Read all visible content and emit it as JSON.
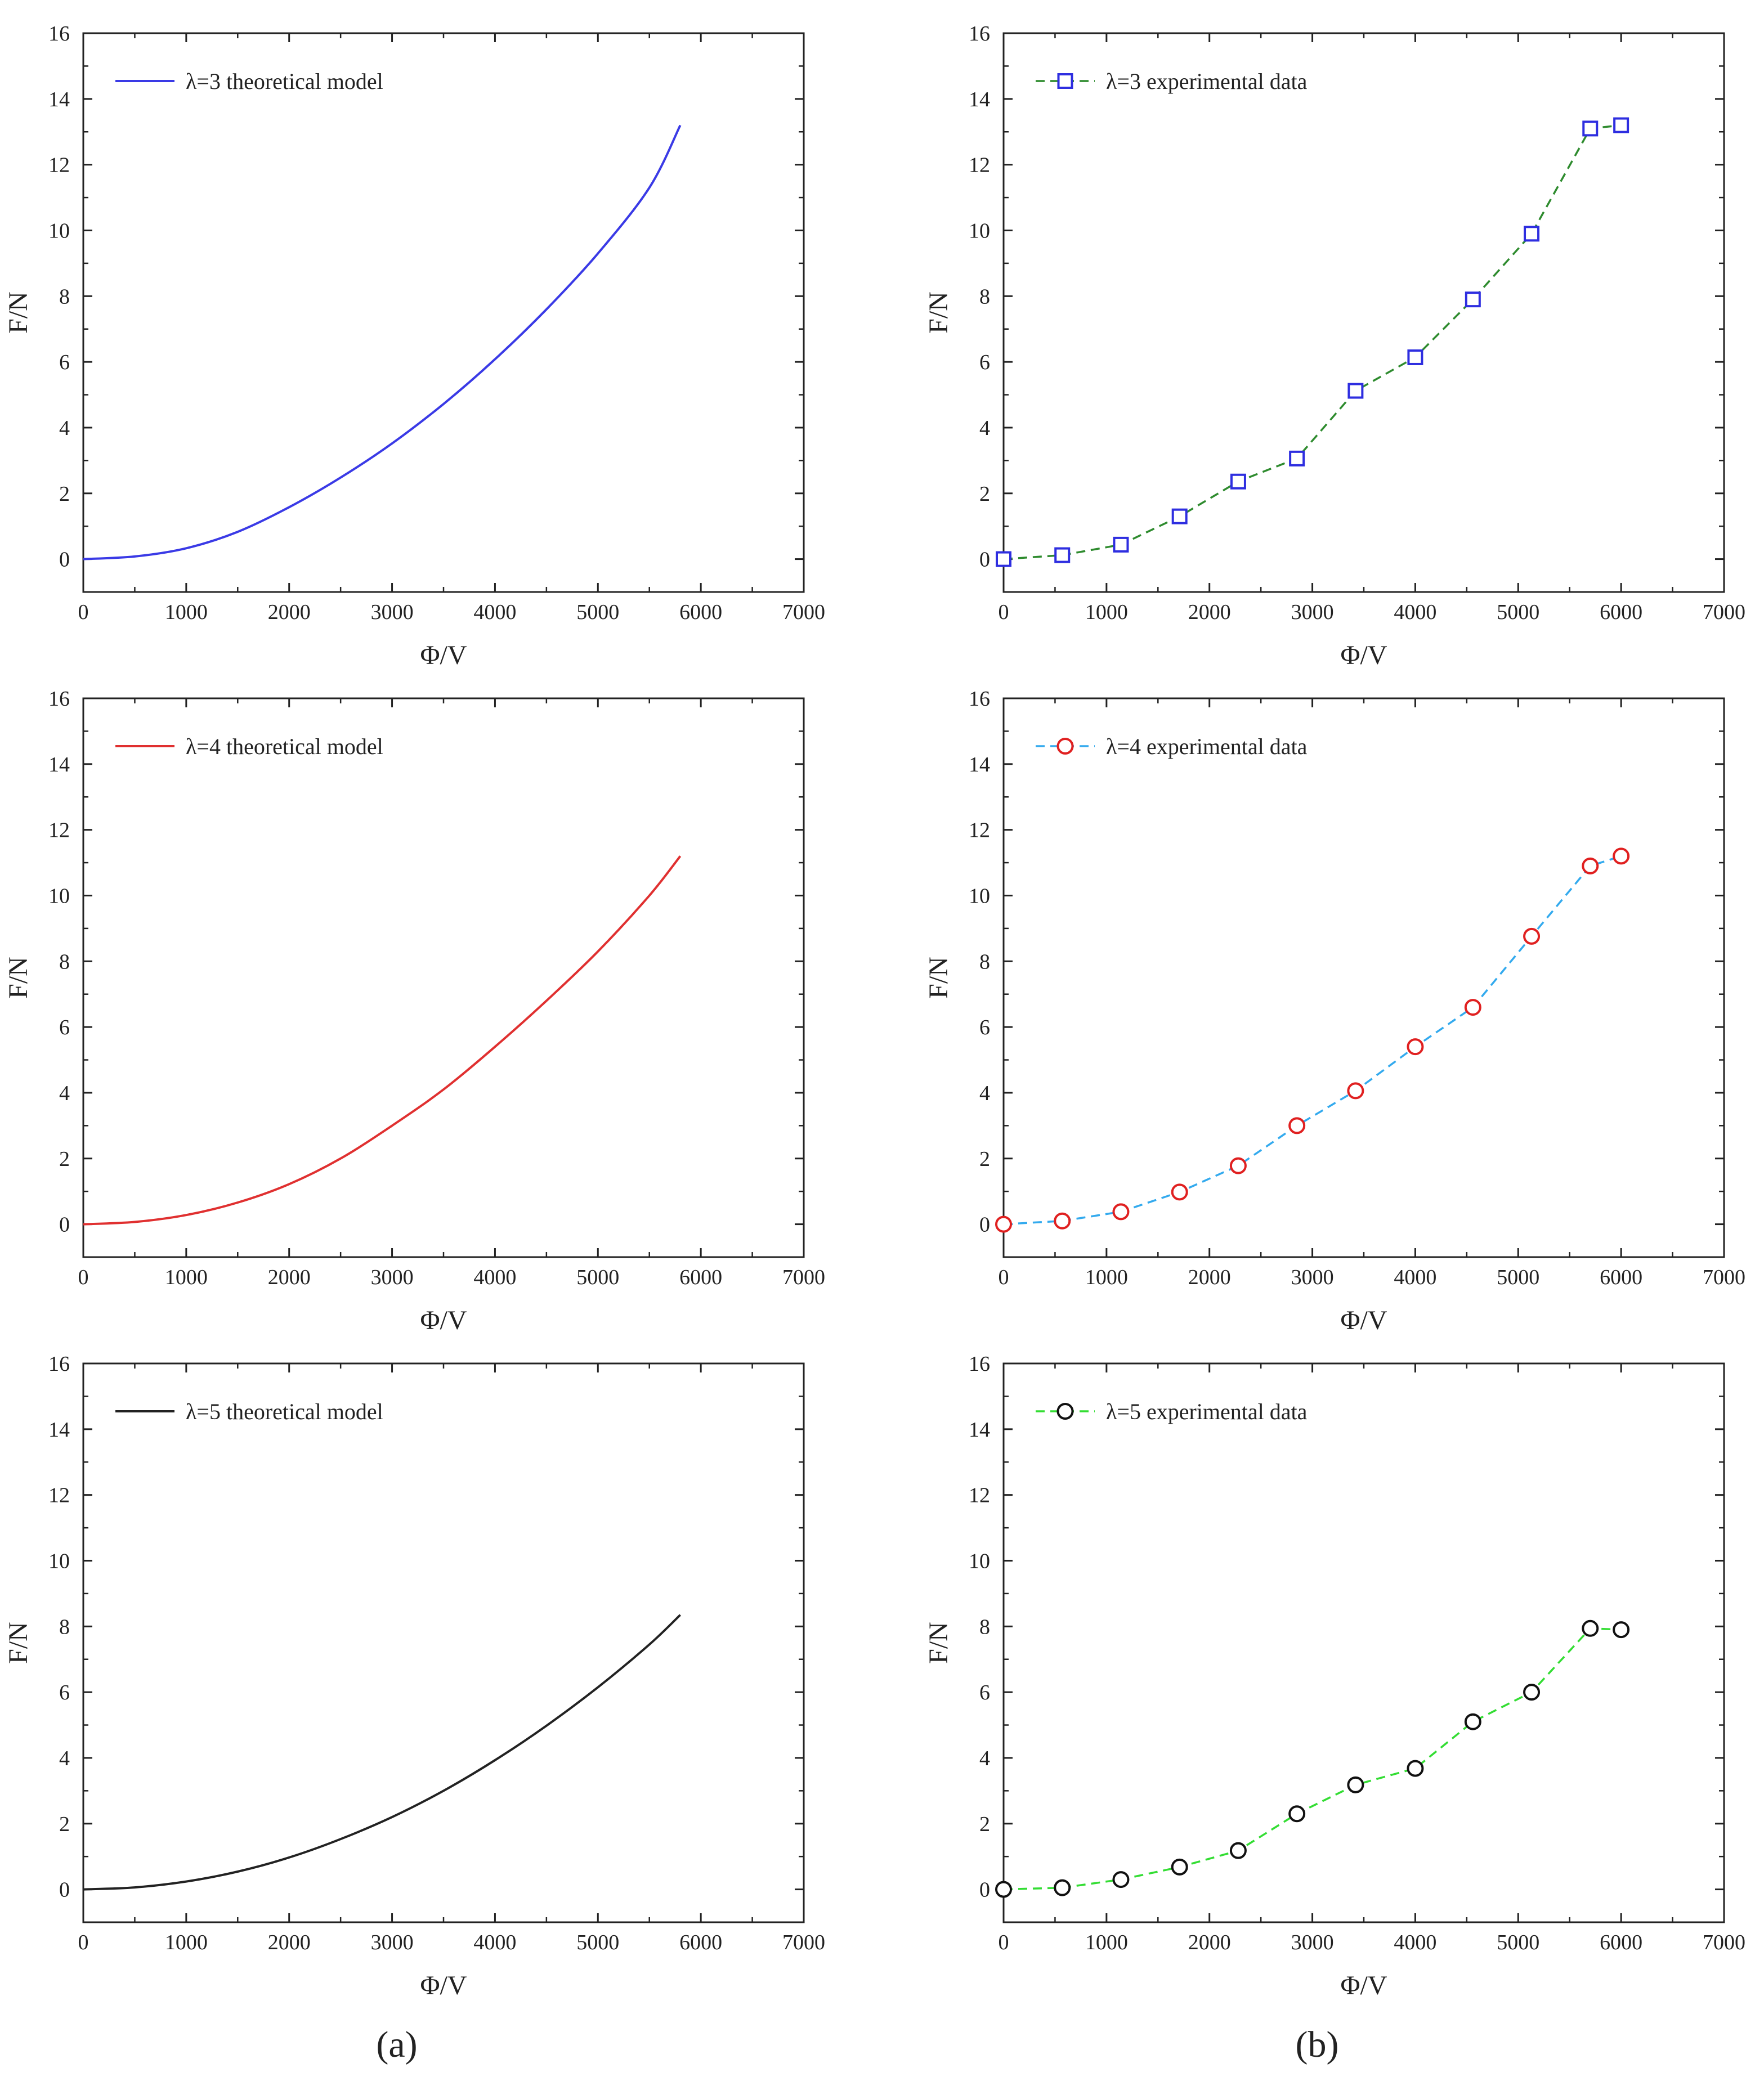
{
  "panel_labels": {
    "a": "(a)",
    "b": "(b)"
  },
  "axis_titles": {
    "x": "Φ/V",
    "y": "F/N"
  },
  "x_ticks": [
    "0",
    "1000",
    "2000",
    "3000",
    "4000",
    "5000",
    "6000",
    "7000"
  ],
  "y_ticks": [
    "0",
    "2",
    "4",
    "6",
    "8",
    "10",
    "12",
    "14",
    "16"
  ],
  "chart_data": [
    {
      "id": "theory-l3",
      "type": "line",
      "column": "a",
      "row": 0,
      "xlabel": "Φ/V",
      "ylabel": "F/N",
      "xlim": [
        0,
        7000
      ],
      "ylim": [
        -1,
        16
      ],
      "legend": "λ=3 theoretical model",
      "legend_location": "top-left",
      "series": [
        {
          "name": "λ=3 theoretical model",
          "color": "#3a3ae6",
          "style": "solid",
          "x": [
            0,
            500,
            1000,
            1500,
            2000,
            2500,
            3000,
            3500,
            4000,
            4500,
            5000,
            5500,
            5800
          ],
          "y": [
            0,
            0.08,
            0.33,
            0.83,
            1.58,
            2.48,
            3.52,
            4.72,
            6.08,
            7.6,
            9.3,
            11.3,
            13.2
          ]
        }
      ]
    },
    {
      "id": "exp-l3",
      "type": "line",
      "column": "b",
      "row": 0,
      "xlabel": "Φ/V",
      "ylabel": "F/N",
      "xlim": [
        0,
        7000
      ],
      "ylim": [
        -1,
        16
      ],
      "legend": "λ=3 experimental data",
      "legend_location": "top-left",
      "marker": "square",
      "marker_color": "#2e2ee0",
      "line_color": "#2e8b2e",
      "series": [
        {
          "name": "λ=3 experimental data",
          "style": "dashed",
          "x": [
            0,
            570,
            1140,
            1710,
            2280,
            2850,
            3420,
            4000,
            4560,
            5130,
            5700,
            6000
          ],
          "y": [
            0,
            0.12,
            0.44,
            1.3,
            2.36,
            3.06,
            5.12,
            6.14,
            7.9,
            9.9,
            13.1,
            13.2
          ]
        }
      ]
    },
    {
      "id": "theory-l4",
      "type": "line",
      "column": "a",
      "row": 1,
      "xlabel": "Φ/V",
      "ylabel": "F/N",
      "xlim": [
        0,
        7000
      ],
      "ylim": [
        -1,
        16
      ],
      "legend": "λ=4 theoretical model",
      "legend_location": "top-left",
      "series": [
        {
          "name": "λ=4 theoretical model",
          "color": "#e03030",
          "style": "solid",
          "x": [
            0,
            500,
            1000,
            1500,
            2000,
            2500,
            3000,
            3500,
            4000,
            4500,
            5000,
            5500,
            5800
          ],
          "y": [
            0,
            0.07,
            0.28,
            0.66,
            1.22,
            2.0,
            3.0,
            4.1,
            5.4,
            6.8,
            8.3,
            10.0,
            11.2
          ]
        }
      ]
    },
    {
      "id": "exp-l4",
      "type": "line",
      "column": "b",
      "row": 1,
      "xlabel": "Φ/V",
      "ylabel": "F/N",
      "xlim": [
        0,
        7000
      ],
      "ylim": [
        -1,
        16
      ],
      "legend": "λ=4 experimental data",
      "legend_location": "top-left",
      "marker": "circle",
      "marker_color": "#e02020",
      "line_color": "#33aaee",
      "series": [
        {
          "name": "λ=4 experimental data",
          "style": "dashed",
          "x": [
            0,
            570,
            1140,
            1710,
            2280,
            2850,
            3420,
            4000,
            4560,
            5130,
            5700,
            6000
          ],
          "y": [
            0,
            0.1,
            0.38,
            0.98,
            1.78,
            3.0,
            4.06,
            5.4,
            6.6,
            8.76,
            10.9,
            11.2
          ]
        }
      ]
    },
    {
      "id": "theory-l5",
      "type": "line",
      "column": "a",
      "row": 2,
      "xlabel": "Φ/V",
      "ylabel": "F/N",
      "xlim": [
        0,
        7000
      ],
      "ylim": [
        -1,
        16
      ],
      "legend": "λ=5 theoretical model",
      "legend_location": "top-left",
      "series": [
        {
          "name": "λ=5 theoretical model",
          "color": "#222222",
          "style": "solid",
          "x": [
            0,
            500,
            1000,
            1500,
            2000,
            2500,
            3000,
            3500,
            4000,
            4500,
            5000,
            5500,
            5800
          ],
          "y": [
            0,
            0.06,
            0.24,
            0.54,
            0.97,
            1.53,
            2.2,
            3.0,
            3.93,
            4.98,
            6.15,
            7.45,
            8.35
          ]
        }
      ]
    },
    {
      "id": "exp-l5",
      "type": "line",
      "column": "b",
      "row": 2,
      "xlabel": "Φ/V",
      "ylabel": "F/N",
      "xlim": [
        0,
        7000
      ],
      "ylim": [
        -1,
        16
      ],
      "legend": "λ=5 experimental data",
      "legend_location": "top-left",
      "marker": "circle",
      "marker_color": "#111111",
      "line_color": "#33dd33",
      "series": [
        {
          "name": "λ=5 experimental data",
          "style": "dashed",
          "x": [
            0,
            570,
            1140,
            1710,
            2280,
            2850,
            3420,
            4000,
            4560,
            5130,
            5700,
            6000
          ],
          "y": [
            0,
            0.05,
            0.3,
            0.68,
            1.18,
            2.3,
            3.18,
            3.68,
            5.1,
            6.0,
            7.94,
            7.9
          ]
        }
      ]
    }
  ]
}
